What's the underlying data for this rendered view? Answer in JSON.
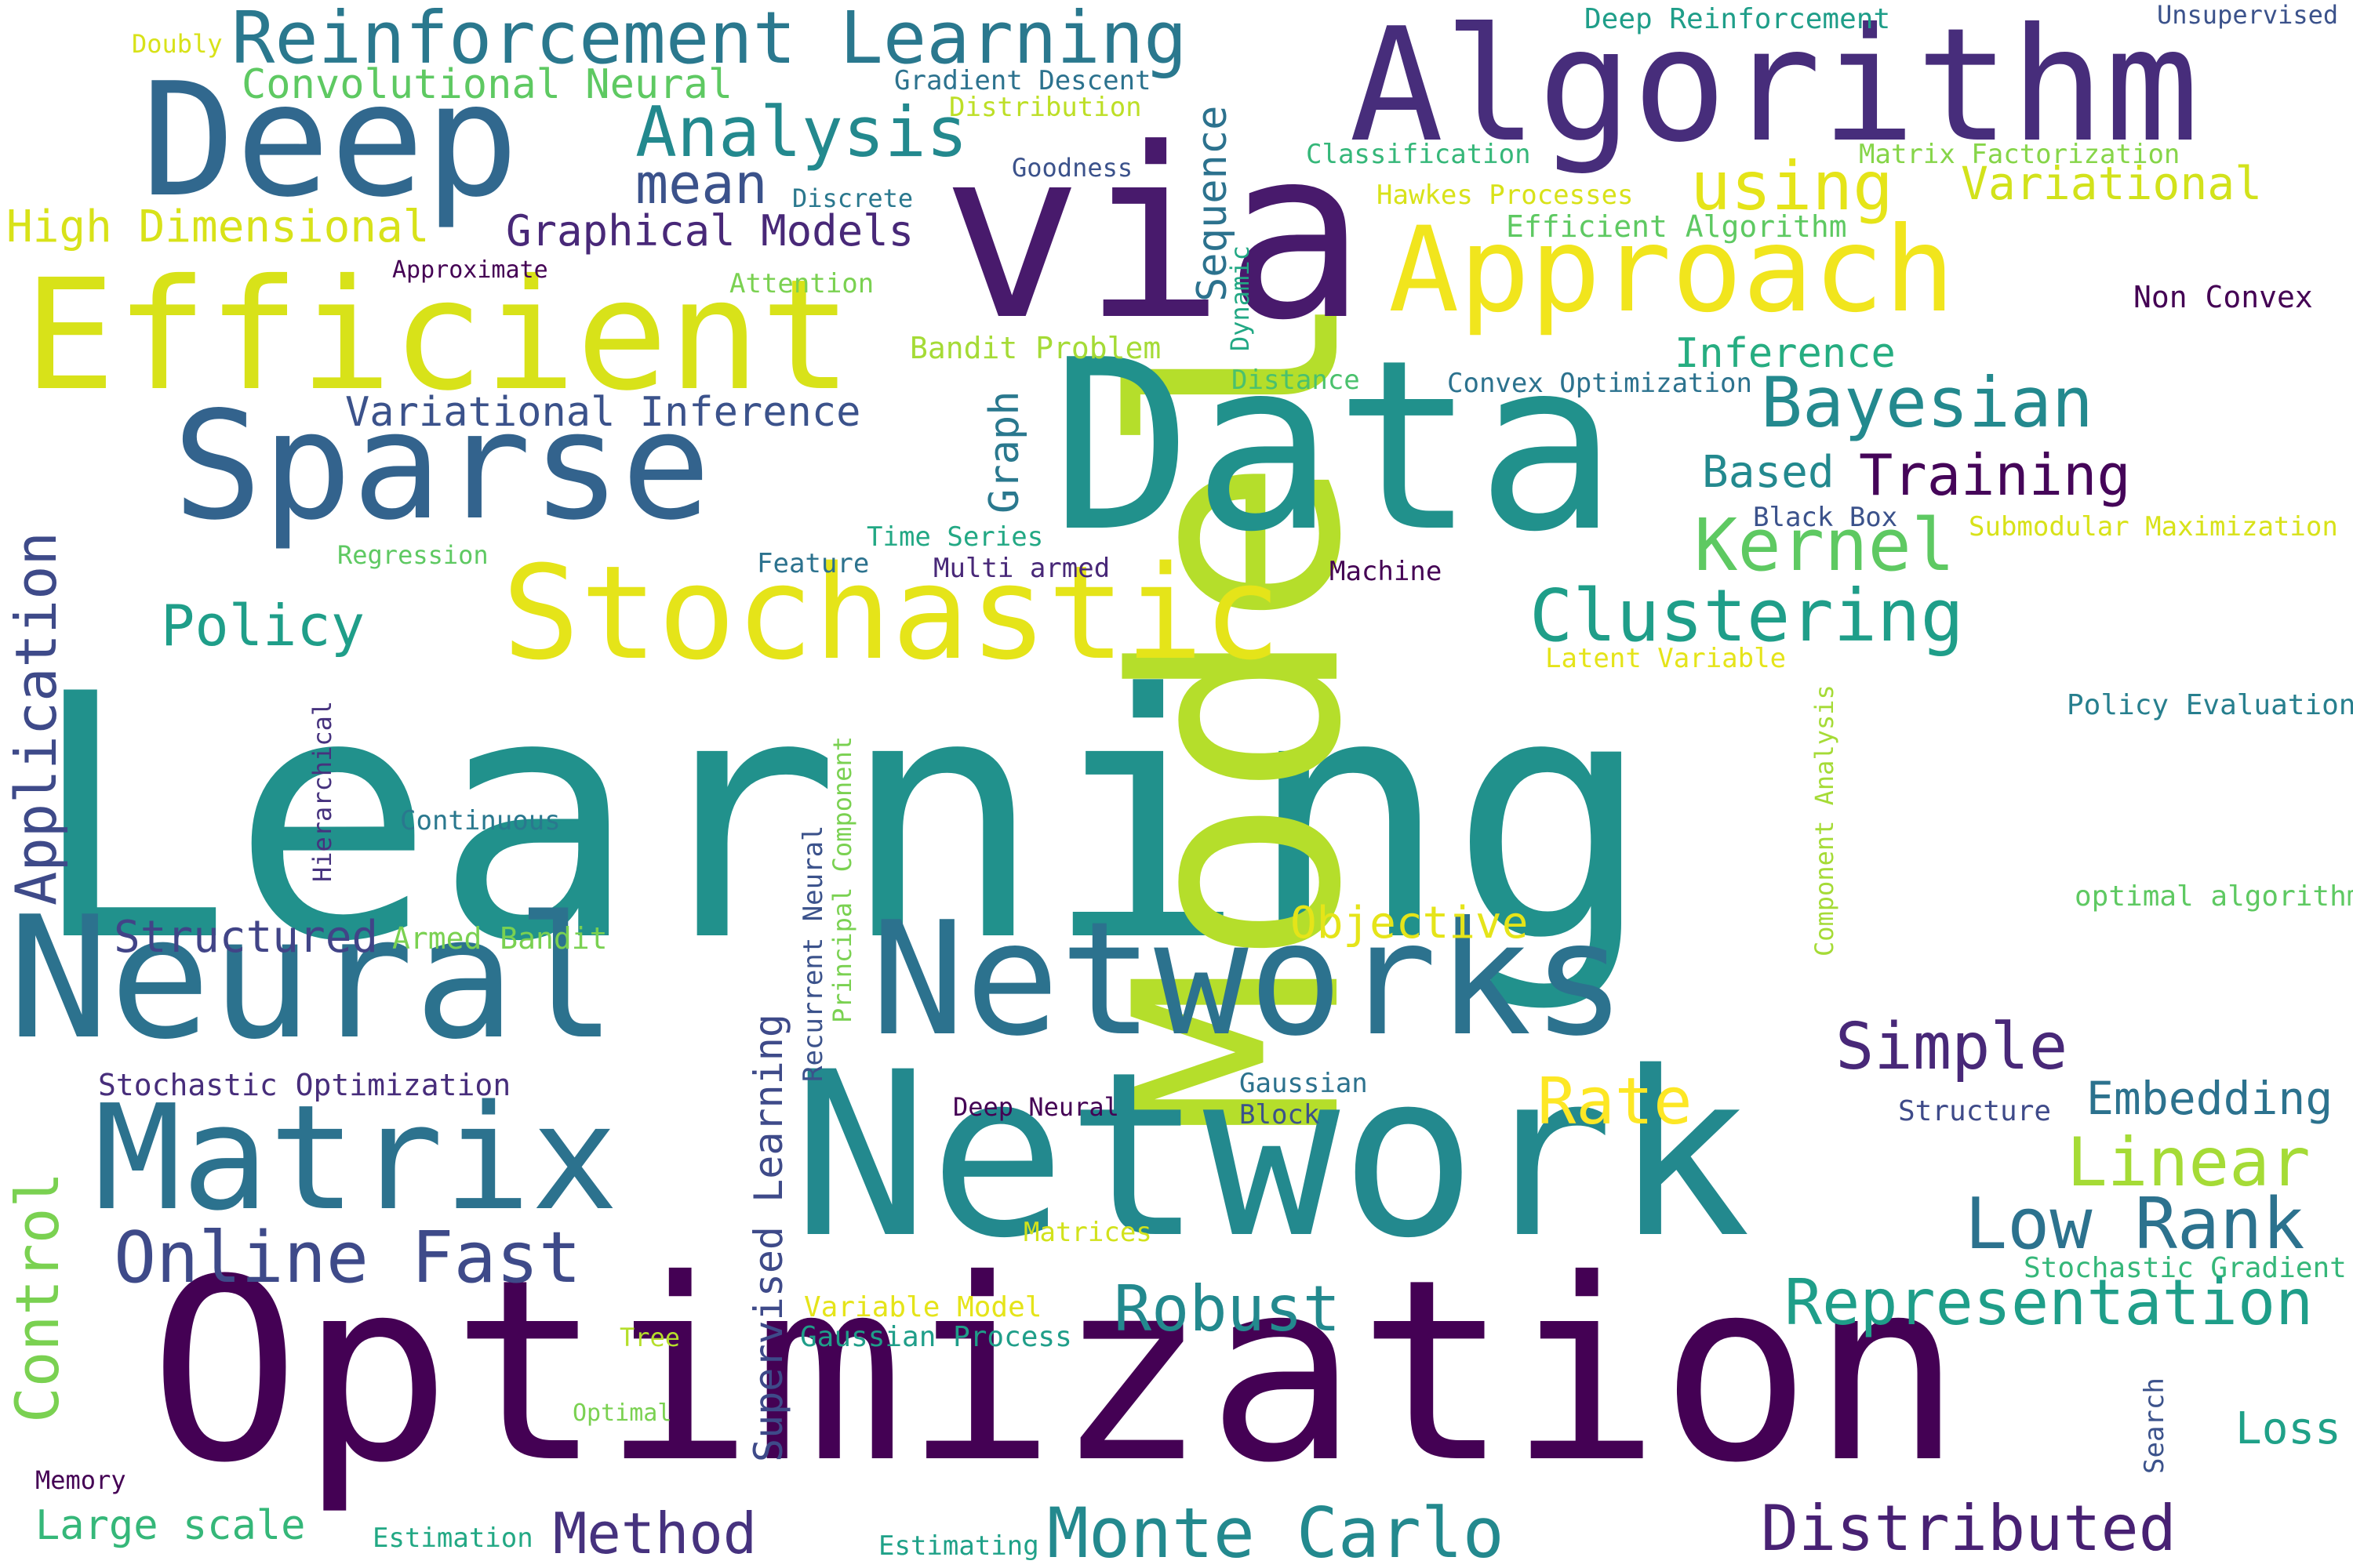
{
  "palette": {
    "background": "#ffffff",
    "colormap": "viridis",
    "dark_purple": "#440154",
    "indigo": "#3b528b",
    "blue": "#2c728e",
    "teal": "#21918c",
    "green": "#28ae80",
    "lime": "#b5de2b",
    "yellow": "#fde725"
  },
  "words": [
    {
      "text": "Learning",
      "color": "#21918c"
    },
    {
      "text": "Model",
      "color": "#b5de2b"
    },
    {
      "text": "Optimization",
      "color": "#440154"
    },
    {
      "text": "Network",
      "color": "#23898e"
    },
    {
      "text": "Data",
      "color": "#21918c"
    },
    {
      "text": "Neural",
      "color": "#2c728e"
    },
    {
      "text": "Networks",
      "color": "#2c728e"
    },
    {
      "text": "via",
      "color": "#481a6c"
    },
    {
      "text": "Algorithm",
      "color": "#472d7b"
    },
    {
      "text": "Deep",
      "color": "#31688e"
    },
    {
      "text": "Efficient",
      "color": "#d8e219"
    },
    {
      "text": "Sparse",
      "color": "#33638d"
    },
    {
      "text": "Stochastic",
      "color": "#e5e419"
    },
    {
      "text": "Matrix",
      "color": "#2c728e"
    },
    {
      "text": "Approach",
      "color": "#f1e51d"
    },
    {
      "text": "Reinforcement Learning",
      "color": "#2a788e"
    },
    {
      "text": "Analysis",
      "color": "#23898e"
    },
    {
      "text": "mean",
      "color": "#3b528b"
    },
    {
      "text": "Convolutional Neural",
      "color": "#5ec962"
    },
    {
      "text": "High Dimensional",
      "color": "#d8e219"
    },
    {
      "text": "Graphical Models",
      "color": "#482878"
    },
    {
      "text": "Approximate",
      "color": "#440154"
    },
    {
      "text": "Variational Inference",
      "color": "#3b528b"
    },
    {
      "text": "Application",
      "color": "#3e4a89"
    },
    {
      "text": "Policy",
      "color": "#1f9e89"
    },
    {
      "text": "Regression",
      "color": "#5ec962"
    },
    {
      "text": "Hierarchical",
      "color": "#46327e"
    },
    {
      "text": "Continuous",
      "color": "#2a788e"
    },
    {
      "text": "Structured",
      "color": "#414487"
    },
    {
      "text": "Armed Bandit",
      "color": "#7ad151"
    },
    {
      "text": "Stochastic Optimization",
      "color": "#472d7b"
    },
    {
      "text": "Control",
      "color": "#7ad151"
    },
    {
      "text": "Online Fast",
      "color": "#3e4a89"
    },
    {
      "text": "Memory",
      "color": "#440154"
    },
    {
      "text": "Large scale",
      "color": "#35b779"
    },
    {
      "text": "Estimation",
      "color": "#22a884"
    },
    {
      "text": "Method",
      "color": "#46327e"
    },
    {
      "text": "Estimating",
      "color": "#1fa188"
    },
    {
      "text": "Monte Carlo",
      "color": "#23898e"
    },
    {
      "text": "Distributed",
      "color": "#482173"
    },
    {
      "text": "Doubly",
      "color": "#d8e219"
    },
    {
      "text": "Gradient Descent",
      "color": "#2c728e"
    },
    {
      "text": "Distribution",
      "color": "#bddf26"
    },
    {
      "text": "Goodness",
      "color": "#3b528b"
    },
    {
      "text": "Discrete",
      "color": "#2a788e"
    },
    {
      "text": "Sequence",
      "color": "#2c728e"
    },
    {
      "text": "Dynamic",
      "color": "#22a884"
    },
    {
      "text": "Attention",
      "color": "#7ad151"
    },
    {
      "text": "Bandit Problem",
      "color": "#a5db36"
    },
    {
      "text": "Graph",
      "color": "#2a788e"
    },
    {
      "text": "Time Series",
      "color": "#22a884"
    },
    {
      "text": "Feature",
      "color": "#2c728e"
    },
    {
      "text": "Multi armed",
      "color": "#482878"
    },
    {
      "text": "Recurrent Neural",
      "color": "#3b528b"
    },
    {
      "text": "Principal Component",
      "color": "#7ad151"
    },
    {
      "text": "Supervised Learning",
      "color": "#3e4a89"
    },
    {
      "text": "Deep Neural",
      "color": "#440154"
    },
    {
      "text": "Matrices",
      "color": "#d2e21b"
    },
    {
      "text": "Variable Model",
      "color": "#e5e419"
    },
    {
      "text": "Gaussian Process",
      "color": "#1f9e89"
    },
    {
      "text": "Tree",
      "color": "#b5de2b"
    },
    {
      "text": "Optimal",
      "color": "#7ad151"
    },
    {
      "text": "Deep Reinforcement",
      "color": "#1f9e89"
    },
    {
      "text": "Unsupervised",
      "color": "#3b528b"
    },
    {
      "text": "Classification",
      "color": "#35b779"
    },
    {
      "text": "Matrix Factorization",
      "color": "#86d549"
    },
    {
      "text": "Hawkes Processes",
      "color": "#d8e219"
    },
    {
      "text": "using",
      "color": "#e5e419"
    },
    {
      "text": "Variational",
      "color": "#d2e21b"
    },
    {
      "text": "Efficient Algorithm",
      "color": "#5ec962"
    },
    {
      "text": "Non Convex",
      "color": "#440154"
    },
    {
      "text": "Inference",
      "color": "#26ad81"
    },
    {
      "text": "Distance",
      "color": "#4ac16d"
    },
    {
      "text": "Convex Optimization",
      "color": "#2c728e"
    },
    {
      "text": "Bayesian",
      "color": "#23898e"
    },
    {
      "text": "Based",
      "color": "#23898e"
    },
    {
      "text": "Training",
      "color": "#450559"
    },
    {
      "text": "Kernel",
      "color": "#5ec962"
    },
    {
      "text": "Black Box",
      "color": "#3b528b"
    },
    {
      "text": "Submodular Maximization",
      "color": "#d8e219"
    },
    {
      "text": "Machine",
      "color": "#440154"
    },
    {
      "text": "Clustering",
      "color": "#1f9e89"
    },
    {
      "text": "Latent Variable",
      "color": "#e5e419"
    },
    {
      "text": "Component Analysis",
      "color": "#a5db36"
    },
    {
      "text": "Policy Evaluation",
      "color": "#277f8e"
    },
    {
      "text": "optimal algorithm",
      "color": "#5ec962"
    },
    {
      "text": "Objective",
      "color": "#e5e419"
    },
    {
      "text": "Simple",
      "color": "#482878"
    },
    {
      "text": "Rate",
      "color": "#fde725"
    },
    {
      "text": "Gaussian",
      "color": "#2c728e"
    },
    {
      "text": "Block",
      "color": "#3b528b"
    },
    {
      "text": "Embedding",
      "color": "#2c728e"
    },
    {
      "text": "Structure",
      "color": "#3e4a89"
    },
    {
      "text": "Linear",
      "color": "#a5db36"
    },
    {
      "text": "Low Rank",
      "color": "#2c728e"
    },
    {
      "text": "Stochastic Gradient",
      "color": "#35b779"
    },
    {
      "text": "Representation",
      "color": "#1f9e89"
    },
    {
      "text": "Robust",
      "color": "#23898e"
    },
    {
      "text": "Search",
      "color": "#3b528b"
    },
    {
      "text": "Loss",
      "color": "#1fa188"
    }
  ]
}
